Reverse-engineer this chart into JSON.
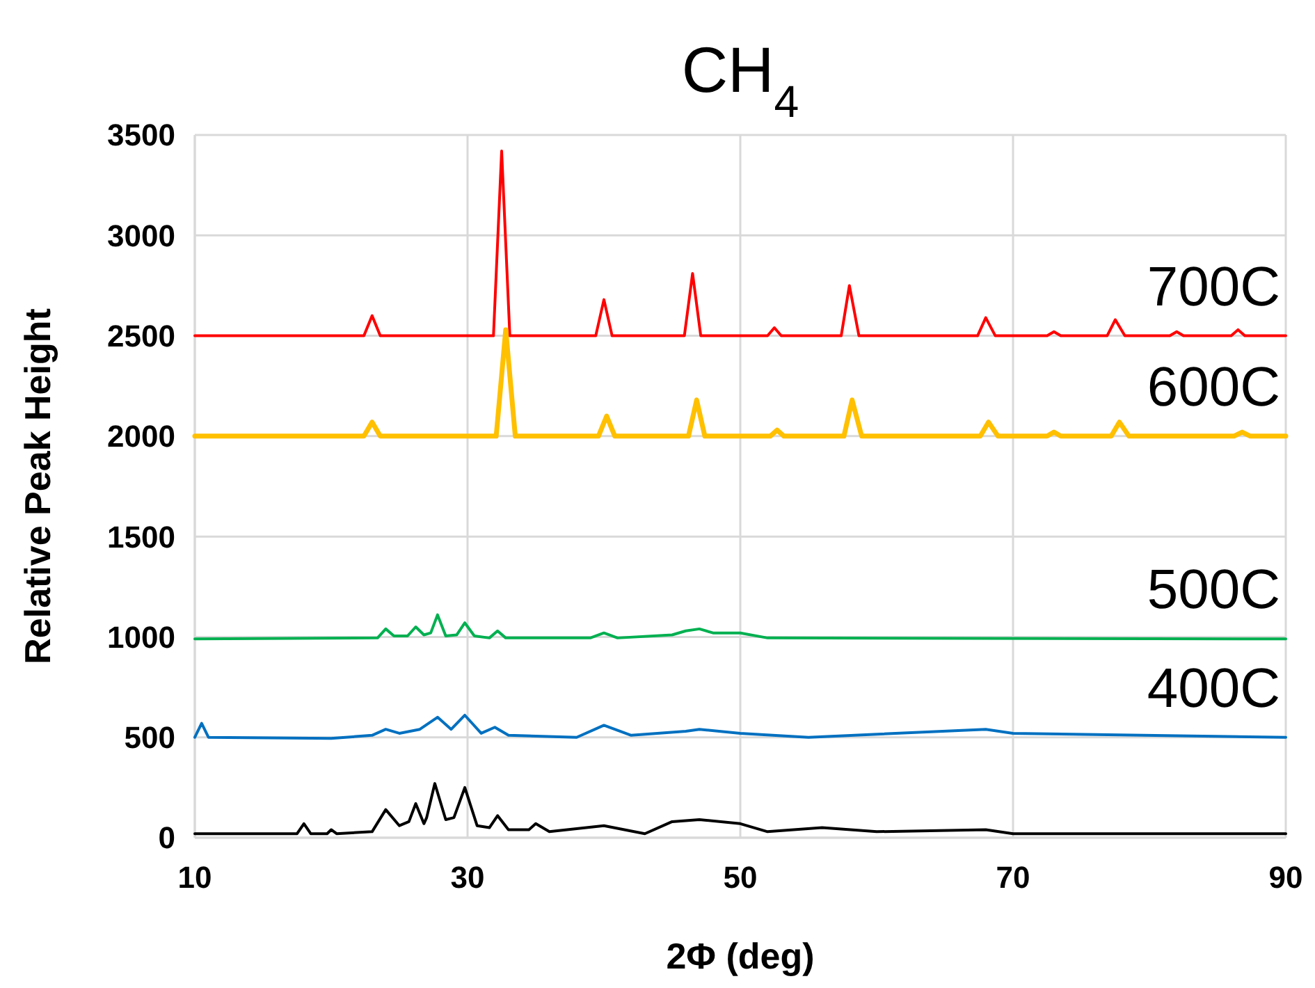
{
  "chart_data": {
    "type": "line",
    "title": "CH$_{4}$",
    "xlabel": "2Φ (deg)",
    "ylabel": "Relative Peak Height",
    "xlim": [
      10,
      90
    ],
    "xticks": [
      10,
      30,
      50,
      70,
      90
    ],
    "ylim": [
      0,
      3500
    ],
    "yticks": [
      0,
      500,
      1000,
      1500,
      2000,
      2500,
      3000,
      3500
    ],
    "grid": true,
    "marker": "none",
    "line_style": "solid",
    "series": [
      {
        "name": "700C",
        "color": "#ff0000",
        "x": [
          10,
          22.4,
          23,
          23.6,
          31.9,
          32.5,
          33.1,
          39.4,
          40,
          40.6,
          45.9,
          46.5,
          47.1,
          52,
          52.5,
          53,
          57.4,
          58,
          58.7,
          67.4,
          68,
          68.7,
          72.5,
          73,
          73.5,
          76.9,
          77.5,
          78.2,
          81.5,
          82,
          82.5,
          86,
          86.5,
          87,
          90
        ],
        "values": [
          2500,
          2500,
          2600,
          2500,
          2500,
          3420,
          2500,
          2500,
          2680,
          2500,
          2500,
          2810,
          2500,
          2500,
          2540,
          2500,
          2500,
          2750,
          2500,
          2500,
          2590,
          2500,
          2500,
          2520,
          2500,
          2500,
          2580,
          2500,
          2500,
          2520,
          2500,
          2500,
          2530,
          2500,
          2500
        ]
      },
      {
        "name": "600C",
        "color": "#ffc000",
        "x": [
          10,
          22.4,
          23,
          23.6,
          32.1,
          32.8,
          33.5,
          39.6,
          40.2,
          40.8,
          46.2,
          46.8,
          47.4,
          52.2,
          52.7,
          53.2,
          57.6,
          58.2,
          58.9,
          67.6,
          68.2,
          68.9,
          72.5,
          73,
          73.5,
          77.2,
          77.8,
          78.5,
          86.2,
          86.8,
          87.4,
          90
        ],
        "values": [
          2000,
          2000,
          2070,
          2000,
          2000,
          2530,
          2000,
          2000,
          2100,
          2000,
          2000,
          2180,
          2000,
          2000,
          2030,
          2000,
          2000,
          2180,
          2000,
          2000,
          2070,
          2000,
          2000,
          2020,
          2000,
          2000,
          2070,
          2000,
          2000,
          2020,
          2000,
          2000
        ]
      },
      {
        "name": "500C",
        "color": "#00b050",
        "x": [
          10,
          23.4,
          24,
          24.6,
          25.6,
          26.2,
          26.8,
          27.3,
          27.8,
          28.4,
          29.2,
          29.8,
          30.5,
          31.6,
          32.2,
          32.8,
          39,
          40,
          41,
          45,
          46,
          47,
          48,
          50,
          52,
          90
        ],
        "values": [
          990,
          995,
          1040,
          1005,
          1005,
          1050,
          1010,
          1020,
          1110,
          1005,
          1010,
          1070,
          1005,
          995,
          1030,
          995,
          995,
          1020,
          995,
          1010,
          1030,
          1040,
          1020,
          1020,
          995,
          990
        ]
      },
      {
        "name": "400C",
        "color": "#0070c0",
        "x": [
          10,
          10.5,
          11,
          20,
          23,
          24,
          25,
          26.5,
          27.8,
          28.8,
          29.8,
          31,
          32,
          33,
          38,
          40,
          42,
          46,
          47,
          50,
          55,
          68,
          70,
          90
        ],
        "values": [
          500,
          570,
          500,
          495,
          510,
          540,
          520,
          540,
          600,
          540,
          610,
          520,
          550,
          510,
          500,
          560,
          510,
          530,
          540,
          520,
          500,
          540,
          520,
          500
        ]
      },
      {
        "color": "#000000",
        "x": [
          10,
          17.5,
          18,
          18.5,
          19.7,
          20,
          20.4,
          23,
          24,
          25,
          25.7,
          26.2,
          26.8,
          27,
          27.6,
          28.4,
          29,
          29.8,
          30.7,
          31.6,
          32.2,
          33,
          34.5,
          35,
          36,
          40,
          43,
          45,
          47,
          50,
          52,
          56,
          60,
          68,
          70,
          90
        ],
        "values": [
          20,
          20,
          70,
          20,
          20,
          40,
          20,
          30,
          140,
          60,
          80,
          170,
          70,
          100,
          270,
          90,
          100,
          250,
          60,
          50,
          110,
          40,
          40,
          70,
          30,
          60,
          20,
          80,
          90,
          70,
          30,
          50,
          30,
          40,
          20,
          20
        ]
      }
    ]
  }
}
